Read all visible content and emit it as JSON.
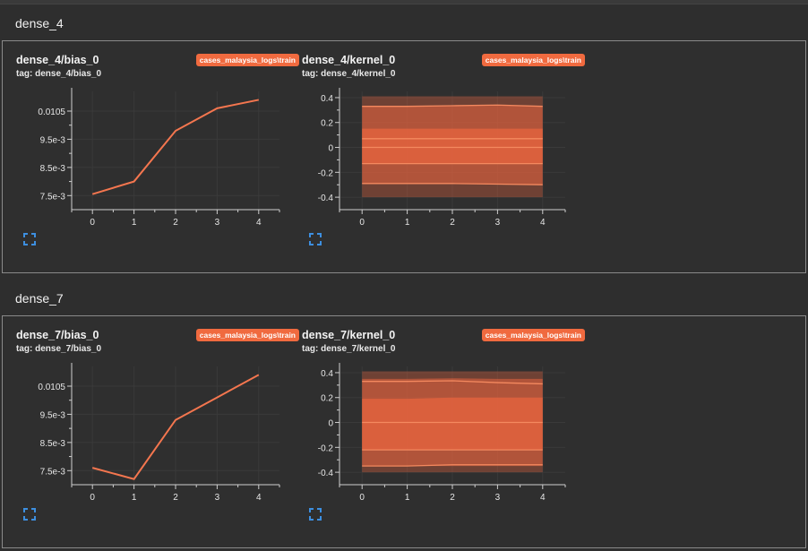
{
  "sections": [
    {
      "name": "dense_4",
      "cards": [
        {
          "title": "dense_4/bias_0",
          "tag": "tag: dense_4/bias_0",
          "run": "cases_malaysia_logs\\train",
          "chart_data": {
            "type": "line",
            "x": [
              0,
              1,
              2,
              3,
              4
            ],
            "values": [
              0.00755,
              0.008,
              0.0098,
              0.0106,
              0.0109
            ],
            "xticks": [
              0,
              1,
              2,
              3,
              4
            ],
            "yticks": [
              0.0075,
              0.0085,
              0.0095,
              0.0105
            ],
            "ytick_labels": [
              "7.5e-3",
              "8.5e-3",
              "9.5e-3",
              "0.0105"
            ],
            "xlim": [
              -0.5,
              4.5
            ],
            "ylim": [
              0.007,
              0.0112
            ],
            "line_color": "#f4764f"
          }
        },
        {
          "title": "dense_4/kernel_0",
          "tag": "tag: dense_4/kernel_0",
          "run": "cases_malaysia_logs\\train",
          "chart_data": {
            "type": "area",
            "x": [
              0,
              1,
              2,
              3,
              4
            ],
            "bands": [
              {
                "low": [
                  -0.4,
                  -0.4,
                  -0.4,
                  -0.4,
                  -0.4
                ],
                "high": [
                  0.41,
                  0.41,
                  0.41,
                  0.41,
                  0.41
                ],
                "opacity": 0.35
              },
              {
                "low": [
                  -0.29,
                  -0.29,
                  -0.29,
                  -0.295,
                  -0.3
                ],
                "high": [
                  0.33,
                  0.33,
                  0.335,
                  0.34,
                  0.33
                ],
                "opacity": 0.55
              },
              {
                "low": [
                  -0.13,
                  -0.13,
                  -0.13,
                  -0.13,
                  -0.13
                ],
                "high": [
                  0.15,
                  0.15,
                  0.15,
                  0.15,
                  0.15
                ],
                "opacity": 0.75
              }
            ],
            "lines": [
              [
                0.33,
                0.33,
                0.335,
                0.34,
                0.33
              ],
              [
                0.07,
                0.07,
                0.07,
                0.07,
                0.07
              ],
              [
                0.0,
                0.0,
                0.0,
                0.0,
                0.0
              ],
              [
                -0.13,
                -0.13,
                -0.13,
                -0.13,
                -0.13
              ],
              [
                -0.29,
                -0.29,
                -0.29,
                -0.295,
                -0.3
              ]
            ],
            "xticks": [
              0,
              1,
              2,
              3,
              4
            ],
            "yticks": [
              -0.4,
              -0.2,
              0,
              0.2,
              0.4
            ],
            "ytick_labels": [
              "-0.4",
              "-0.2",
              "0",
              "0.2",
              "0.4"
            ],
            "xlim": [
              -0.5,
              4.5
            ],
            "ylim": [
              -0.5,
              0.45
            ],
            "fill_color": "#e8643f"
          }
        }
      ]
    },
    {
      "name": "dense_7",
      "cards": [
        {
          "title": "dense_7/bias_0",
          "tag": "tag: dense_7/bias_0",
          "run": "cases_malaysia_logs\\train",
          "chart_data": {
            "type": "line",
            "x": [
              0,
              1,
              2,
              3,
              4
            ],
            "values": [
              0.0076,
              0.0072,
              0.0093,
              0.0101,
              0.0109
            ],
            "xticks": [
              0,
              1,
              2,
              3,
              4
            ],
            "yticks": [
              0.0075,
              0.0085,
              0.0095,
              0.0105
            ],
            "ytick_labels": [
              "7.5e-3",
              "8.5e-3",
              "9.5e-3",
              "0.0105"
            ],
            "xlim": [
              -0.5,
              4.5
            ],
            "ylim": [
              0.007,
              0.0112
            ],
            "line_color": "#f4764f"
          }
        },
        {
          "title": "dense_7/kernel_0",
          "tag": "tag: dense_7/kernel_0",
          "run": "cases_malaysia_logs\\train",
          "chart_data": {
            "type": "area",
            "x": [
              0,
              1,
              2,
              3,
              4
            ],
            "bands": [
              {
                "low": [
                  -0.4,
                  -0.4,
                  -0.4,
                  -0.4,
                  -0.4
                ],
                "high": [
                  0.41,
                  0.41,
                  0.41,
                  0.41,
                  0.41
                ],
                "opacity": 0.35
              },
              {
                "low": [
                  -0.35,
                  -0.35,
                  -0.35,
                  -0.35,
                  -0.35
                ],
                "high": [
                  0.35,
                  0.35,
                  0.355,
                  0.35,
                  0.35
                ],
                "opacity": 0.55
              },
              {
                "low": [
                  -0.22,
                  -0.22,
                  -0.22,
                  -0.22,
                  -0.22
                ],
                "high": [
                  0.19,
                  0.19,
                  0.2,
                  0.2,
                  0.2
                ],
                "opacity": 0.75
              }
            ],
            "lines": [
              [
                0.33,
                0.33,
                0.335,
                0.32,
                0.31
              ],
              [
                0.0,
                0.0,
                0.0,
                0.0,
                0.0
              ],
              [
                -0.22,
                -0.22,
                -0.22,
                -0.22,
                -0.22
              ],
              [
                -0.35,
                -0.35,
                -0.34,
                -0.34,
                -0.34
              ]
            ],
            "xticks": [
              0,
              1,
              2,
              3,
              4
            ],
            "yticks": [
              -0.4,
              -0.2,
              0,
              0.2,
              0.4
            ],
            "ytick_labels": [
              "-0.4",
              "-0.2",
              "0",
              "0.2",
              "0.4"
            ],
            "xlim": [
              -0.5,
              4.5
            ],
            "ylim": [
              -0.5,
              0.45
            ],
            "fill_color": "#e8643f"
          }
        }
      ]
    }
  ]
}
